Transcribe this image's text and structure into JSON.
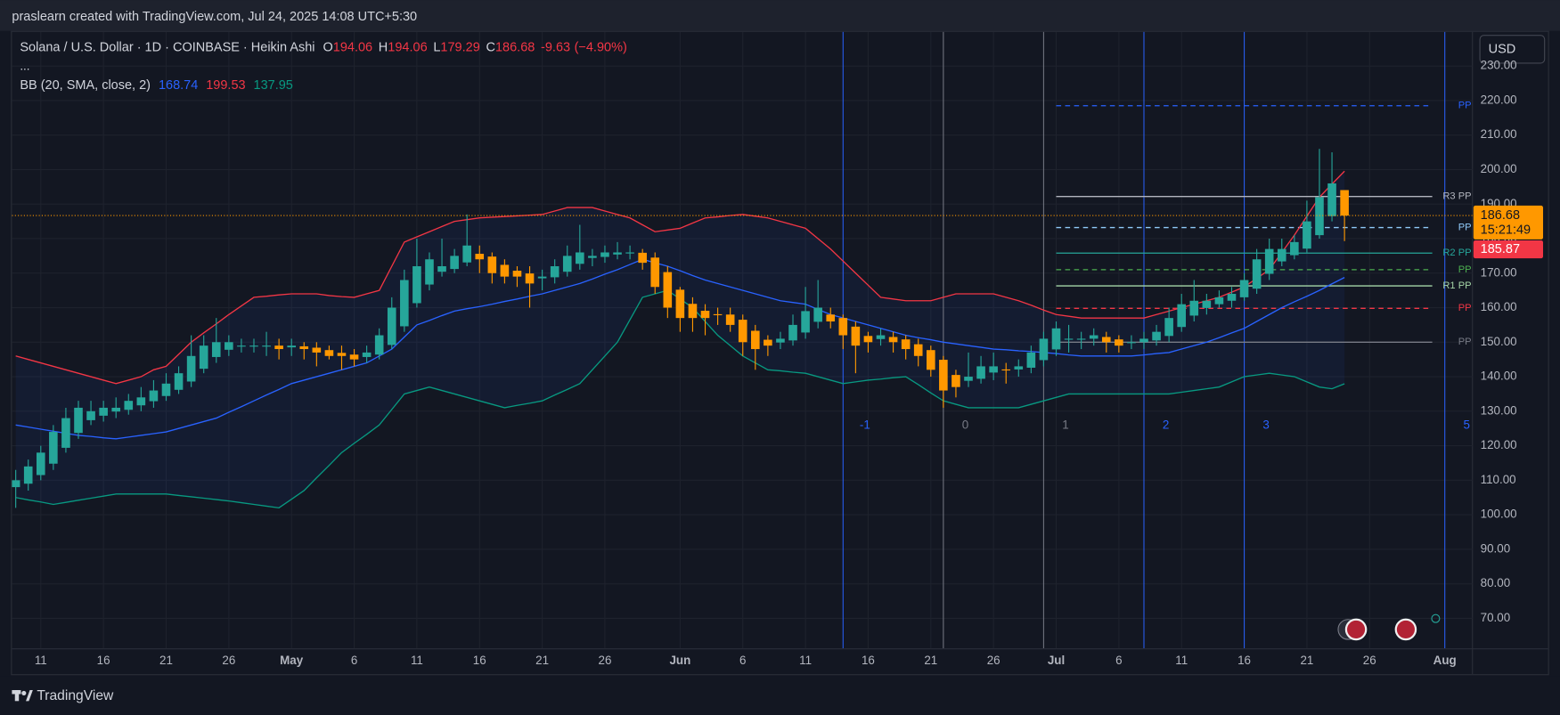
{
  "header": {
    "credit": "praslearn created with TradingView.com, Jul 24, 2025 14:08 UTC+5:30",
    "brand": "TradingView",
    "currency": "USD"
  },
  "chart_data": {
    "type": "candlestick",
    "symbol": "Solana / U.S. Dollar · 1D · COINBASE · Heikin Ashi",
    "ohlc_labels": [
      "O",
      "H",
      "L",
      "C"
    ],
    "change": -9.63,
    "change_pct_label": "(−4.90%)",
    "more": "...",
    "indicator_label": "BB (20, SMA, close, 2)",
    "countdown": "15:21:49",
    "red_price_label": 185.87,
    "bull_color": "#26a69a",
    "bear_color": "#ff9800",
    "grid": true,
    "ylim": [
      61.3,
      239.9
    ],
    "yticks": [
      {
        "value": 70,
        "label": "70.00"
      },
      {
        "value": 80,
        "label": "80.00"
      },
      {
        "value": 90,
        "label": "90.00"
      },
      {
        "value": 100,
        "label": "100.00"
      },
      {
        "value": 110,
        "label": "110.00"
      },
      {
        "value": 120,
        "label": "120.00"
      },
      {
        "value": 130,
        "label": "130.00"
      },
      {
        "value": 140,
        "label": "140.00"
      },
      {
        "value": 150,
        "label": "150.00"
      },
      {
        "value": 160,
        "label": "160.00"
      },
      {
        "value": 170,
        "label": "170.00"
      },
      {
        "value": 180,
        "label": "180.00"
      },
      {
        "value": 190,
        "label": "190.00"
      },
      {
        "value": 200,
        "label": "200.00"
      },
      {
        "value": 210,
        "label": "210.00"
      },
      {
        "value": 220,
        "label": "220.00"
      },
      {
        "value": 230,
        "label": "230.00"
      }
    ],
    "categories": [
      null,
      null,
      "11",
      null,
      null,
      null,
      null,
      "16",
      null,
      null,
      null,
      null,
      "21",
      null,
      null,
      null,
      null,
      "26",
      null,
      null,
      null,
      null,
      "May",
      null,
      null,
      null,
      null,
      "6",
      null,
      null,
      null,
      null,
      "11",
      null,
      null,
      null,
      null,
      "16",
      null,
      null,
      null,
      null,
      "21",
      null,
      null,
      null,
      null,
      "26",
      null,
      null,
      null,
      null,
      null,
      "Jun",
      null,
      null,
      null,
      null,
      "6",
      null,
      null,
      null,
      null,
      "11",
      null,
      null,
      null,
      null,
      "16",
      null,
      null,
      null,
      null,
      "21",
      null,
      null,
      null,
      null,
      "26",
      null,
      null,
      null,
      null,
      "Jul",
      null,
      null,
      null,
      null,
      "6",
      null,
      null,
      null,
      null,
      "11",
      null,
      null,
      null,
      null,
      "16",
      null,
      null,
      null,
      null,
      "21",
      null,
      null,
      null,
      null,
      "26",
      null,
      null,
      null,
      null,
      null,
      "Aug",
      null,
      null
    ],
    "open": [
      108,
      109,
      111.5,
      114.8,
      119.4,
      123.7,
      127.4,
      128.7,
      129.9,
      130.4,
      131.7,
      132.9,
      134.4,
      136.2,
      138.6,
      142.3,
      145.7,
      147.8,
      148.9,
      149,
      149,
      149,
      148.5,
      148.8,
      148.4,
      147.7,
      146.9,
      146.4,
      145.7,
      146.4,
      149.2,
      154.6,
      161.3,
      166.7,
      170.4,
      171.2,
      173.1,
      175.6,
      174.8,
      172.4,
      170.7,
      169.9,
      168.5,
      168.8,
      170.4,
      172.7,
      174.4,
      174.7,
      175.4,
      175.7,
      175.9,
      174.5,
      170.3,
      165.2,
      161.1,
      159.1,
      158.1,
      158,
      156.5,
      153.3,
      150.7,
      149.9,
      150.5,
      152.8,
      155.9,
      158,
      157,
      154.5,
      151.8,
      150.9,
      151.5,
      150.8,
      149.4,
      147.7,
      144.9,
      140.5,
      138.8,
      139.4,
      141.2,
      142.1,
      142.1,
      142.6,
      144.8,
      147.9,
      151,
      151,
      151,
      151.5,
      150.8,
      149.9,
      150,
      150.5,
      151.8,
      154.4,
      157.7,
      159.9,
      161,
      162,
      163,
      165.5,
      169.8,
      173.4,
      175.2,
      177.1,
      181,
      186.5,
      194.06,
      null,
      null,
      null,
      null,
      null,
      null,
      null,
      null,
      null,
      null
    ],
    "high": [
      113,
      116,
      120,
      126,
      131,
      133,
      133,
      133,
      134,
      135,
      137,
      139,
      141,
      143,
      152,
      152,
      157,
      152,
      151,
      151,
      153,
      151,
      151,
      150,
      150,
      149,
      149,
      148,
      149,
      154,
      163,
      171,
      180,
      176,
      180,
      177,
      187,
      178,
      176,
      174,
      172,
      172,
      171,
      174,
      178,
      184,
      177,
      178,
      179,
      178,
      177,
      176,
      172,
      166,
      163,
      161,
      160,
      160,
      158,
      155,
      152,
      153,
      158,
      166,
      168,
      160,
      158,
      156,
      153,
      154,
      153,
      152,
      151,
      149,
      146,
      142,
      147,
      146,
      147,
      144,
      145,
      149,
      153,
      156,
      155,
      153,
      154,
      153,
      152,
      152,
      153,
      155,
      160,
      164,
      168,
      164,
      165,
      166,
      170,
      177,
      180,
      180,
      181,
      191,
      206,
      205,
      194.06,
      null,
      null,
      null,
      null,
      null,
      null,
      null,
      null,
      null,
      null
    ],
    "low": [
      102,
      107,
      110,
      113,
      118,
      122,
      126,
      127,
      128,
      129,
      130,
      131,
      133,
      135,
      137,
      141,
      144,
      146,
      147,
      147,
      146,
      145,
      146,
      145,
      143,
      145,
      142,
      143,
      144,
      145,
      148,
      153,
      160,
      165,
      169,
      170,
      172,
      170,
      167,
      167,
      166,
      160,
      165,
      167,
      169,
      171,
      172,
      173,
      174,
      174,
      171,
      164,
      157,
      153,
      153,
      152,
      155,
      153,
      146,
      142,
      146,
      148,
      149,
      151,
      154,
      154,
      148,
      141,
      147,
      149,
      147,
      145,
      143,
      140,
      131,
      134,
      137,
      138,
      139,
      138,
      140,
      141,
      143,
      146,
      147,
      148,
      149,
      147,
      147,
      148,
      148,
      149,
      150,
      153,
      156,
      158,
      160,
      160,
      162,
      164,
      168,
      172,
      174,
      176,
      180,
      185,
      179.29,
      null,
      null,
      null,
      null,
      null,
      null,
      null,
      null,
      null,
      null
    ],
    "close": [
      110,
      114,
      118,
      124,
      128,
      131,
      130,
      131,
      131,
      133,
      134,
      136,
      138,
      141,
      146,
      149,
      150,
      150,
      149,
      149,
      149,
      148,
      149,
      148,
      147,
      146,
      146,
      145,
      147,
      152,
      160,
      168,
      172,
      174,
      172,
      175,
      178,
      174,
      170,
      169,
      169,
      167,
      169,
      172,
      175,
      176,
      175,
      176,
      176,
      176,
      173,
      166,
      160,
      157,
      157,
      157,
      158,
      155,
      150,
      148,
      149,
      151,
      155,
      159,
      160,
      156,
      152,
      149,
      150,
      152,
      150,
      148,
      146,
      142,
      136,
      137,
      140,
      143,
      143,
      142,
      143,
      147,
      151,
      154,
      151,
      151,
      152,
      150,
      149,
      150,
      151,
      153,
      157,
      161,
      162,
      162,
      163,
      164,
      168,
      174,
      177,
      177,
      179,
      185,
      192,
      196,
      186.68,
      null,
      null,
      null,
      null,
      null,
      null,
      null,
      null,
      null,
      null
    ],
    "series": [
      {
        "color": "#2962ff",
        "values": [
          126,
          125.4,
          124.8,
          124.2,
          123.6,
          123,
          122.7,
          122.3,
          122,
          122.5,
          123,
          123.5,
          124,
          125,
          126,
          127,
          128,
          129.7,
          131.3,
          133,
          134.7,
          136.3,
          138,
          139,
          140,
          141,
          142,
          143,
          144,
          146,
          148,
          151.5,
          155,
          156.3,
          157.7,
          159,
          159.7,
          160.3,
          161,
          161.8,
          162.5,
          163.3,
          164,
          165,
          166,
          167,
          168.3,
          169.7,
          171,
          172.5,
          174,
          173,
          172,
          170.7,
          169.3,
          168,
          167,
          166,
          165,
          164,
          163,
          162,
          161.5,
          161,
          159.5,
          158,
          157,
          156,
          155,
          154,
          153,
          152,
          151.3,
          150.7,
          150,
          149.5,
          149,
          148.5,
          148,
          147.8,
          147.5,
          147.3,
          147,
          146.7,
          146.3,
          146,
          146,
          146,
          146,
          146,
          146.3,
          146.7,
          147,
          148,
          149,
          150,
          151.3,
          152.7,
          154,
          156,
          158,
          160,
          161.7,
          163.3,
          165,
          166.9,
          168.74,
          null,
          null,
          null,
          null,
          null,
          null,
          null,
          null,
          null,
          null
        ]
      },
      {
        "color": "#f23645",
        "values": [
          146,
          145,
          144,
          143,
          142,
          141,
          140,
          139,
          138,
          139,
          140,
          142,
          143,
          146.5,
          150,
          152.7,
          155.3,
          158,
          160.5,
          163,
          163.3,
          163.7,
          164,
          164,
          164,
          163.5,
          163.2,
          163,
          164,
          165,
          172,
          179,
          180.5,
          182,
          183.5,
          185,
          185.5,
          186,
          186.2,
          186.4,
          186.6,
          186.8,
          187,
          188,
          189,
          189,
          189,
          188,
          187,
          186,
          184,
          182,
          182.5,
          183,
          184.5,
          186,
          186.3,
          186.7,
          187,
          186.5,
          186,
          185,
          184,
          183,
          180,
          177,
          173.5,
          170,
          166.5,
          163,
          162.5,
          162,
          162,
          162,
          163,
          164,
          164,
          164,
          164,
          163,
          162,
          160.7,
          159.3,
          158,
          157.5,
          157,
          157,
          157,
          157,
          157,
          157,
          158,
          159,
          160,
          161,
          162,
          163,
          164.5,
          166,
          168.5,
          171,
          176,
          181,
          186.5,
          192,
          195.8,
          199.53,
          null,
          null,
          null,
          null,
          null,
          null,
          null,
          null,
          null,
          null
        ]
      },
      {
        "color": "#089981",
        "values": [
          105,
          104.3,
          103.7,
          103,
          103.6,
          104.2,
          104.8,
          105.4,
          106,
          106,
          106,
          106,
          106,
          105.6,
          105.2,
          104.8,
          104.4,
          104,
          103.5,
          103,
          102.5,
          102,
          104.5,
          107,
          110.7,
          114.3,
          118,
          120.7,
          123.3,
          126,
          130.5,
          135,
          136,
          137,
          136,
          135,
          134,
          133,
          132,
          131,
          131.7,
          132.3,
          133,
          134.7,
          136.3,
          138,
          142,
          146,
          150,
          156.5,
          163,
          164,
          165,
          162.5,
          160,
          156,
          152,
          149,
          146,
          144,
          142,
          141.7,
          141.3,
          141,
          140,
          139,
          138,
          138.5,
          139,
          139.3,
          139.7,
          140,
          137.7,
          135.3,
          133,
          132,
          131,
          131,
          131,
          131,
          131,
          132,
          133,
          134,
          135,
          135,
          135,
          135,
          135,
          135,
          135,
          135,
          135,
          135.5,
          136,
          136.5,
          137,
          138.5,
          140,
          140.5,
          141,
          140.5,
          140,
          138.5,
          137,
          136.5,
          137.95,
          null,
          null,
          null,
          null,
          null,
          null,
          null,
          null,
          null,
          null
        ]
      }
    ],
    "pivots": [
      {
        "label": "PP",
        "value": 218.5,
        "color": "#2962ff",
        "dashed": true
      },
      {
        "label": "R3 PP",
        "value": 192.2,
        "color": "#b2b5be",
        "dashed": false
      },
      {
        "label": "PP",
        "value": 183.2,
        "color": "#90caf9",
        "dashed": true
      },
      {
        "label": "R2 PP",
        "value": 175.8,
        "color": "#26a69a",
        "dashed": false
      },
      {
        "label": "PP",
        "value": 171,
        "color": "#4caf50",
        "dashed": true
      },
      {
        "label": "R1 PP",
        "value": 166.3,
        "color": "#a5d6a7",
        "dashed": false
      },
      {
        "label": "PP",
        "value": 159.8,
        "color": "#f23645",
        "dashed": true
      },
      {
        "label": "PP",
        "value": 150,
        "color": "#787b86",
        "dashed": false
      }
    ],
    "cycle_labels": [
      {
        "label": "-1",
        "color": "#2962ff"
      },
      {
        "label": "0",
        "color": "#787b86"
      },
      {
        "label": "1",
        "color": "#787b86"
      },
      {
        "label": "2",
        "color": "#2962ff"
      },
      {
        "label": "3",
        "color": "#2962ff"
      },
      {
        "label": "5",
        "color": "#2962ff"
      }
    ]
  }
}
